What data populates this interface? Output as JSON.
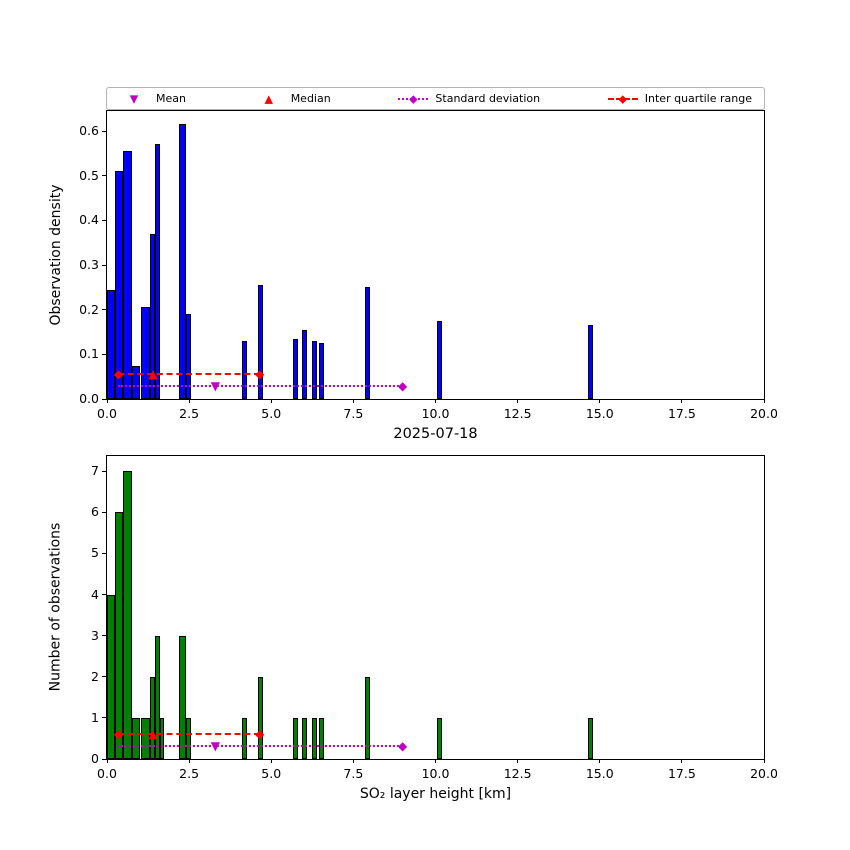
{
  "figure": {
    "background": "#ffffff"
  },
  "legend": {
    "items": [
      {
        "label": "Mean",
        "marker": "triangle-down",
        "color": "#bf00bf",
        "line": "none"
      },
      {
        "label": "Median",
        "marker": "triangle-up",
        "color": "#ff0000",
        "line": "none"
      },
      {
        "label": "Standard deviation",
        "marker": "diamond",
        "color": "#bf00bf",
        "line": "dotted"
      },
      {
        "label": "Inter quartile range",
        "marker": "diamond",
        "color": "#ff0000",
        "line": "dashed"
      }
    ]
  },
  "chart_data": [
    {
      "type": "bar",
      "title": "",
      "xlabel": "",
      "ylabel": "Observation density",
      "xlim": [
        0,
        20
      ],
      "ylim": [
        0,
        0.645
      ],
      "grid": false,
      "legend_position": "top",
      "bar_color": "#0000ff",
      "bar_edge_color": "#000000",
      "xticks": [
        {
          "v": 0,
          "l": "0.0"
        },
        {
          "v": 2.5,
          "l": "2.5"
        },
        {
          "v": 5,
          "l": "5.0"
        },
        {
          "v": 7.5,
          "l": "7.5"
        },
        {
          "v": 10,
          "l": "10.0"
        },
        {
          "v": 12.5,
          "l": "12.5"
        },
        {
          "v": 15,
          "l": "15.0"
        },
        {
          "v": 17.5,
          "l": "17.5"
        },
        {
          "v": 20,
          "l": "20.0"
        }
      ],
      "yticks": [
        {
          "v": 0,
          "l": "0.0"
        },
        {
          "v": 0.1,
          "l": "0.1"
        },
        {
          "v": 0.2,
          "l": "0.2"
        },
        {
          "v": 0.3,
          "l": "0.3"
        },
        {
          "v": 0.4,
          "l": "0.4"
        },
        {
          "v": 0.5,
          "l": "0.5"
        },
        {
          "v": 0.6,
          "l": "0.6"
        }
      ],
      "bars": [
        [
          0.0,
          0.25,
          0.245
        ],
        [
          0.25,
          0.5,
          0.51
        ],
        [
          0.5,
          0.75,
          0.555
        ],
        [
          0.75,
          1.0,
          0.075
        ],
        [
          1.05,
          1.3,
          0.205
        ],
        [
          1.3,
          1.45,
          0.37
        ],
        [
          1.45,
          1.6,
          0.57
        ],
        [
          2.2,
          2.4,
          0.615
        ],
        [
          2.4,
          2.55,
          0.19
        ],
        [
          4.1,
          4.25,
          0.13
        ],
        [
          4.6,
          4.75,
          0.255
        ],
        [
          5.65,
          5.8,
          0.135
        ],
        [
          5.95,
          6.1,
          0.155
        ],
        [
          6.25,
          6.4,
          0.13
        ],
        [
          6.45,
          6.6,
          0.125
        ],
        [
          7.85,
          8.0,
          0.25
        ],
        [
          10.05,
          10.2,
          0.175
        ],
        [
          14.65,
          14.8,
          0.165
        ]
      ],
      "lines": [
        {
          "name": "iqr-line",
          "style": "dashed",
          "color": "#ff0000",
          "x0": 0.35,
          "x1": 4.65,
          "y": 0.057
        },
        {
          "name": "std-line",
          "style": "dotted",
          "color": "#bf00bf",
          "x0": 0.35,
          "x1": 9.0,
          "y": 0.03
        }
      ],
      "markers": [
        {
          "name": "iqr-left-marker",
          "glyph": "diamond",
          "color": "#ff0000",
          "x": 0.35,
          "y": 0.057
        },
        {
          "name": "iqr-right-marker",
          "glyph": "diamond",
          "color": "#ff0000",
          "x": 4.65,
          "y": 0.057
        },
        {
          "name": "median-marker",
          "glyph": "triangle-up",
          "color": "#ff0000",
          "x": 1.4,
          "y": 0.057
        },
        {
          "name": "mean-marker",
          "glyph": "triangle-down",
          "color": "#bf00bf",
          "x": 3.3,
          "y": 0.03
        },
        {
          "name": "std-right-marker",
          "glyph": "diamond",
          "color": "#bf00bf",
          "x": 9.0,
          "y": 0.03
        }
      ],
      "stats": {
        "mean": 3.3,
        "median": 1.4,
        "iqr": [
          0.35,
          4.65
        ],
        "std_range": [
          0.35,
          9.0
        ]
      }
    },
    {
      "type": "bar",
      "title": "2025-07-18",
      "xlabel": "SO₂ layer height [km]",
      "ylabel": "Number of observations",
      "xlim": [
        0,
        20
      ],
      "ylim": [
        0,
        7.37
      ],
      "grid": false,
      "bar_color": "#008000",
      "bar_edge_color": "#000000",
      "xticks": [
        {
          "v": 0,
          "l": "0.0"
        },
        {
          "v": 2.5,
          "l": "2.5"
        },
        {
          "v": 5,
          "l": "5.0"
        },
        {
          "v": 7.5,
          "l": "7.5"
        },
        {
          "v": 10,
          "l": "10.0"
        },
        {
          "v": 12.5,
          "l": "12.5"
        },
        {
          "v": 15,
          "l": "15.0"
        },
        {
          "v": 17.5,
          "l": "17.5"
        },
        {
          "v": 20,
          "l": "20.0"
        }
      ],
      "yticks": [
        {
          "v": 0,
          "l": "0"
        },
        {
          "v": 1,
          "l": "1"
        },
        {
          "v": 2,
          "l": "2"
        },
        {
          "v": 3,
          "l": "3"
        },
        {
          "v": 4,
          "l": "4"
        },
        {
          "v": 5,
          "l": "5"
        },
        {
          "v": 6,
          "l": "6"
        },
        {
          "v": 7,
          "l": "7"
        }
      ],
      "bars": [
        [
          0.0,
          0.25,
          4
        ],
        [
          0.25,
          0.5,
          6
        ],
        [
          0.5,
          0.75,
          7
        ],
        [
          0.75,
          1.0,
          1
        ],
        [
          1.05,
          1.3,
          1
        ],
        [
          1.3,
          1.45,
          2
        ],
        [
          1.45,
          1.6,
          3
        ],
        [
          1.6,
          1.75,
          1
        ],
        [
          2.2,
          2.4,
          3
        ],
        [
          2.4,
          2.55,
          1
        ],
        [
          4.1,
          4.25,
          1
        ],
        [
          4.6,
          4.75,
          2
        ],
        [
          5.65,
          5.8,
          1
        ],
        [
          5.95,
          6.1,
          1
        ],
        [
          6.25,
          6.4,
          1
        ],
        [
          6.45,
          6.6,
          1
        ],
        [
          7.85,
          8.0,
          2
        ],
        [
          10.05,
          10.2,
          1
        ],
        [
          14.65,
          14.8,
          1
        ]
      ],
      "lines": [
        {
          "name": "iqr-line",
          "style": "dashed",
          "color": "#ff0000",
          "x0": 0.35,
          "x1": 4.65,
          "y": 0.62
        },
        {
          "name": "std-line",
          "style": "dotted",
          "color": "#bf00bf",
          "x0": 0.35,
          "x1": 9.0,
          "y": 0.32
        }
      ],
      "markers": [
        {
          "name": "iqr-left-marker",
          "glyph": "diamond",
          "color": "#ff0000",
          "x": 0.35,
          "y": 0.62
        },
        {
          "name": "iqr-right-marker",
          "glyph": "diamond",
          "color": "#ff0000",
          "x": 4.65,
          "y": 0.62
        },
        {
          "name": "median-marker",
          "glyph": "triangle-up",
          "color": "#ff0000",
          "x": 1.4,
          "y": 0.62
        },
        {
          "name": "mean-marker",
          "glyph": "triangle-down",
          "color": "#bf00bf",
          "x": 3.3,
          "y": 0.32
        },
        {
          "name": "std-right-marker",
          "glyph": "diamond",
          "color": "#bf00bf",
          "x": 9.0,
          "y": 0.32
        }
      ],
      "stats": {
        "mean": 3.3,
        "median": 1.4,
        "iqr": [
          0.35,
          4.65
        ],
        "std_range": [
          0.35,
          9.0
        ]
      }
    }
  ]
}
